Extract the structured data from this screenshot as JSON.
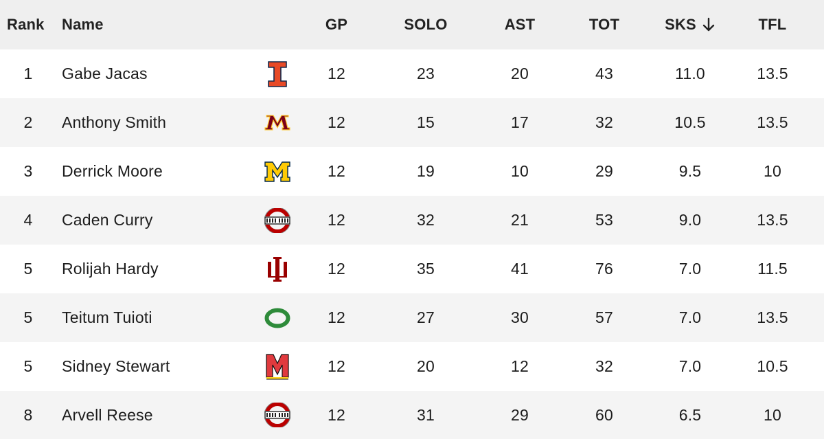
{
  "columns": {
    "rank": "Rank",
    "name": "Name",
    "gp": "GP",
    "solo": "SOLO",
    "ast": "AST",
    "tot": "TOT",
    "sks": "SKS",
    "tfl": "TFL"
  },
  "sort": {
    "column": "SKS",
    "direction": "descending",
    "icon": "arrow-down-icon"
  },
  "rows": [
    {
      "rank": "1",
      "name": "Gabe Jacas",
      "logo": "illinois-logo",
      "gp": "12",
      "solo": "23",
      "ast": "20",
      "tot": "43",
      "sks": "11.0",
      "tfl": "13.5"
    },
    {
      "rank": "2",
      "name": "Anthony Smith",
      "logo": "minnesota-logo",
      "gp": "12",
      "solo": "15",
      "ast": "17",
      "tot": "32",
      "sks": "10.5",
      "tfl": "13.5"
    },
    {
      "rank": "3",
      "name": "Derrick Moore",
      "logo": "michigan-logo",
      "gp": "12",
      "solo": "19",
      "ast": "10",
      "tot": "29",
      "sks": "9.5",
      "tfl": "10"
    },
    {
      "rank": "4",
      "name": "Caden Curry",
      "logo": "ohio-state-logo",
      "gp": "12",
      "solo": "32",
      "ast": "21",
      "tot": "53",
      "sks": "9.0",
      "tfl": "13.5"
    },
    {
      "rank": "5",
      "name": "Rolijah Hardy",
      "logo": "indiana-logo",
      "gp": "12",
      "solo": "35",
      "ast": "41",
      "tot": "76",
      "sks": "7.0",
      "tfl": "11.5"
    },
    {
      "rank": "5",
      "name": "Teitum Tuioti",
      "logo": "oregon-logo",
      "gp": "12",
      "solo": "27",
      "ast": "30",
      "tot": "57",
      "sks": "7.0",
      "tfl": "13.5"
    },
    {
      "rank": "5",
      "name": "Sidney Stewart",
      "logo": "maryland-logo",
      "gp": "12",
      "solo": "20",
      "ast": "12",
      "tot": "32",
      "sks": "7.0",
      "tfl": "10.5"
    },
    {
      "rank": "8",
      "name": "Arvell Reese",
      "logo": "ohio-state-logo",
      "gp": "12",
      "solo": "31",
      "ast": "29",
      "tot": "60",
      "sks": "6.5",
      "tfl": "10"
    }
  ],
  "colors": {
    "header_bg": "#efefef",
    "row_alt_bg": "#f4f4f4",
    "illinois": "#e84a27",
    "minnesota": "#7a0019",
    "minnesota_gold": "#ffcc33",
    "michigan": "#ffcb05",
    "ohio_state": "#bb0000",
    "indiana": "#990000",
    "oregon": "#154733",
    "oregon_green": "#2e8b3a",
    "maryland": "#e03a3e"
  }
}
